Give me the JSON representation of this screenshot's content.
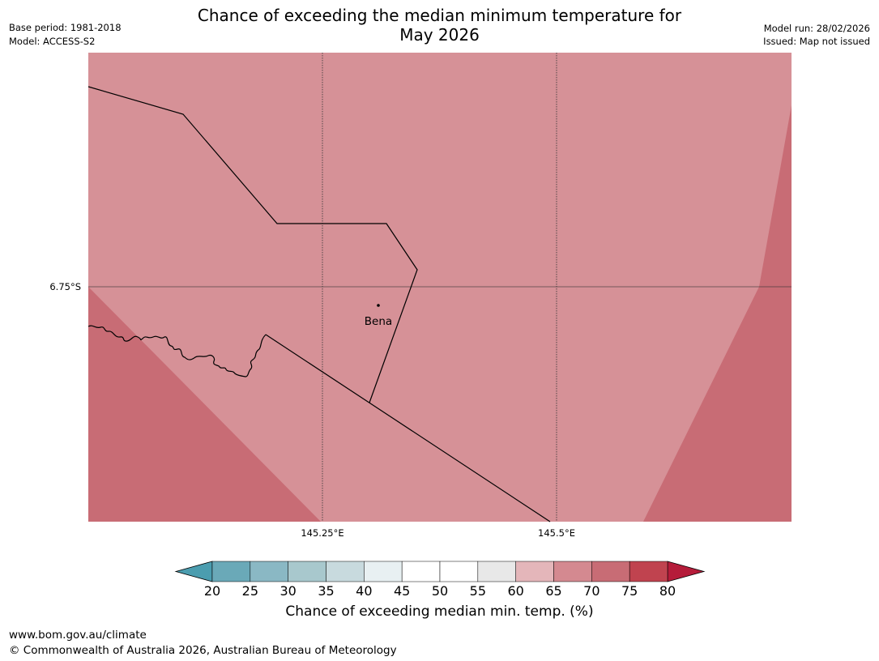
{
  "header": {
    "title_line1": "Chance of exceeding the median minimum temperature for",
    "title_line2": "May 2026",
    "base_period": "Base period: 1981-2018",
    "model": "Model: ACCESS-S2",
    "model_run": "Model run: 28/02/2026",
    "issued": "Issued: Map not issued"
  },
  "map": {
    "place_label": "Bena",
    "lat_label": "6.75°S",
    "lon_labels": [
      "145.25°E",
      "145.5°E"
    ],
    "colors": {
      "light_red": "#d69197",
      "mid_red": "#c86c75",
      "boundary": "#000000",
      "gridline": "#333333"
    },
    "categories": {
      "background_class": "65-70",
      "corner_class": "70-75"
    }
  },
  "colorbar": {
    "label": "Chance of exceeding median min. temp. (%)",
    "ticks": [
      "20",
      "25",
      "30",
      "35",
      "40",
      "45",
      "50",
      "55",
      "60",
      "65",
      "70",
      "75",
      "80"
    ],
    "under_color": "#4b9daf",
    "over_color": "#b51c3a",
    "bin_colors": [
      "#6aa9b8",
      "#8ab8c4",
      "#a8c8cd",
      "#c8dade",
      "#e8f0f2",
      "#ffffff",
      "#ffffff",
      "#e8e8e8",
      "#e4b6ba",
      "#d48990",
      "#c86c75",
      "#c0434f"
    ]
  },
  "footer": {
    "url": "www.bom.gov.au/climate",
    "copyright": "© Commonwealth of Australia 2026, Australian Bureau of Meteorology"
  }
}
